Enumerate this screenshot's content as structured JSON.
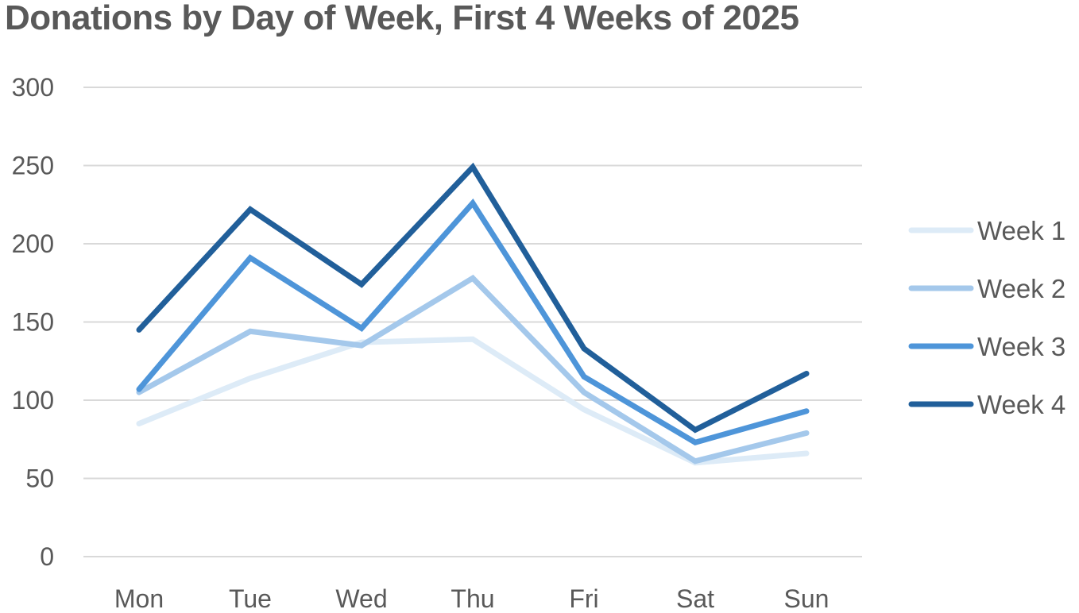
{
  "chart_data": {
    "type": "line",
    "title": "Donations by Day of Week, First 4 Weeks of 2025",
    "xlabel": "",
    "ylabel": "",
    "categories": [
      "Mon",
      "Tue",
      "Wed",
      "Thu",
      "Fri",
      "Sat",
      "Sun"
    ],
    "ylim": [
      0,
      300
    ],
    "yticks": [
      0,
      50,
      100,
      150,
      200,
      250,
      300
    ],
    "grid": true,
    "legend_position": "right",
    "series": [
      {
        "name": "Week 1",
        "color": "#DDEBF7",
        "values": [
          85,
          114,
          137,
          139,
          94,
          60,
          66
        ]
      },
      {
        "name": "Week 2",
        "color": "#A4C8EB",
        "values": [
          105,
          144,
          135,
          178,
          105,
          61,
          79
        ]
      },
      {
        "name": "Week 3",
        "color": "#4E95D9",
        "values": [
          107,
          191,
          146,
          226,
          115,
          73,
          93
        ]
      },
      {
        "name": "Week 4",
        "color": "#215F9A",
        "values": [
          145,
          222,
          174,
          249,
          133,
          81,
          117
        ]
      }
    ]
  }
}
